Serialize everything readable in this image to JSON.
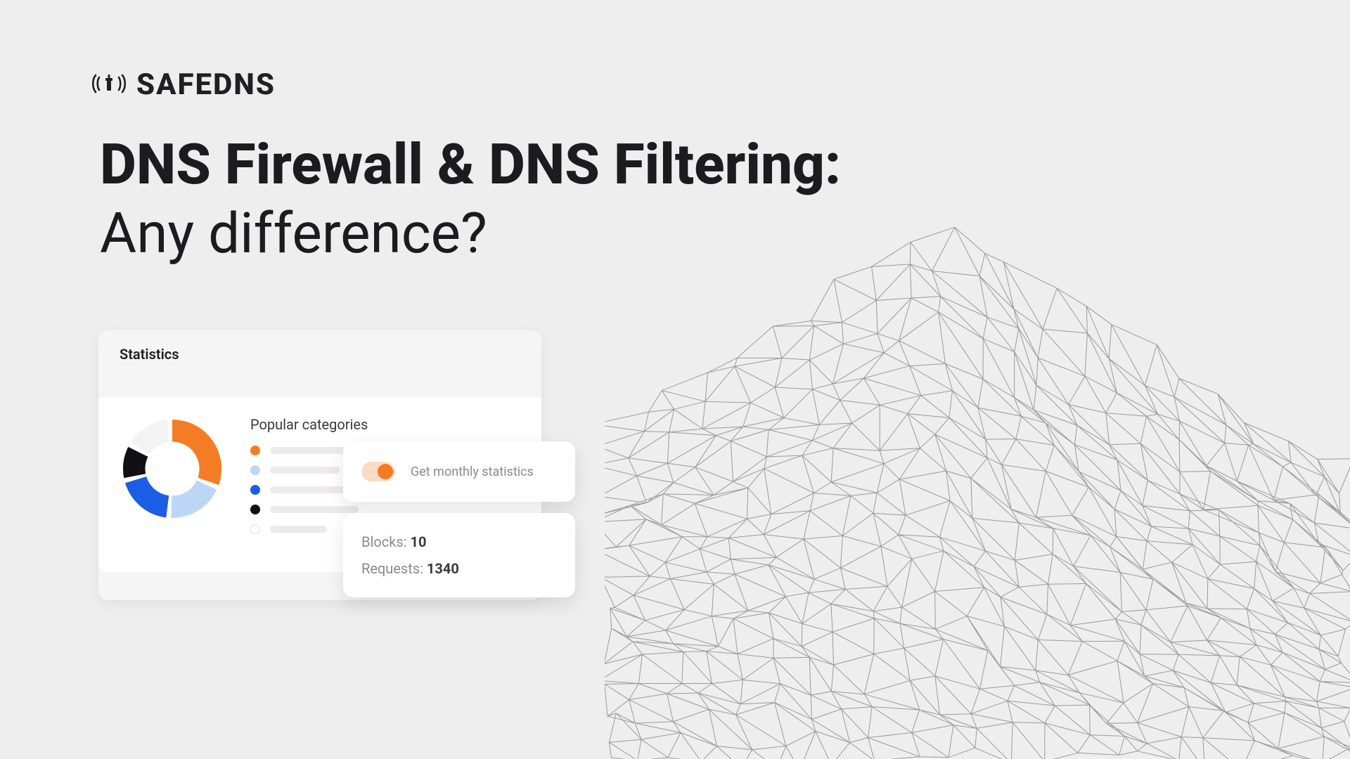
{
  "brand": {
    "name": "SAFEDNS",
    "logo_color": "#202022"
  },
  "headline": {
    "line1": "DNS Firewall & DNS Filtering:",
    "line2": "Any difference?"
  },
  "colors": {
    "background": "#eeeeee",
    "card_bg": "#ffffff",
    "card_header_bg": "#f5f5f5",
    "text_primary": "#202022",
    "text_secondary": "#8a8a8e",
    "bar_placeholder": "#eceaea",
    "donut_track": "#f3f3f3",
    "mesh_stroke": "#9a9a9a"
  },
  "stats_card": {
    "title": "Statistics",
    "popular_title": "Popular categories",
    "donut": {
      "type": "donut",
      "slices": [
        {
          "color": "#f47c24",
          "percent": 32
        },
        {
          "color": "#bcd6f6",
          "percent": 20
        },
        {
          "color": "#1a5ee6",
          "percent": 20
        },
        {
          "color": "#111114",
          "percent": 12
        },
        {
          "color": "#f3f3f3",
          "percent": 16
        }
      ],
      "inner_radius_ratio": 0.55,
      "gap_deg": 6
    },
    "categories": [
      {
        "color": "#f47c24",
        "bar_width_pct": 90
      },
      {
        "color": "#bcd6f6",
        "bar_width_pct": 55
      },
      {
        "color": "#1a5ee6",
        "bar_width_pct": 80
      },
      {
        "color": "#111114",
        "bar_width_pct": 70
      },
      {
        "color": "#ffffff",
        "bar_width_pct": 45
      }
    ]
  },
  "toggle_card": {
    "label": "Get monthly statistics",
    "on": true,
    "track_color": "#fddcc4",
    "knob_color": "#f47c24"
  },
  "counts_card": {
    "blocks_label": "Blocks: ",
    "blocks_value": "10",
    "requests_label": "Requests: ",
    "requests_value": "1340"
  }
}
